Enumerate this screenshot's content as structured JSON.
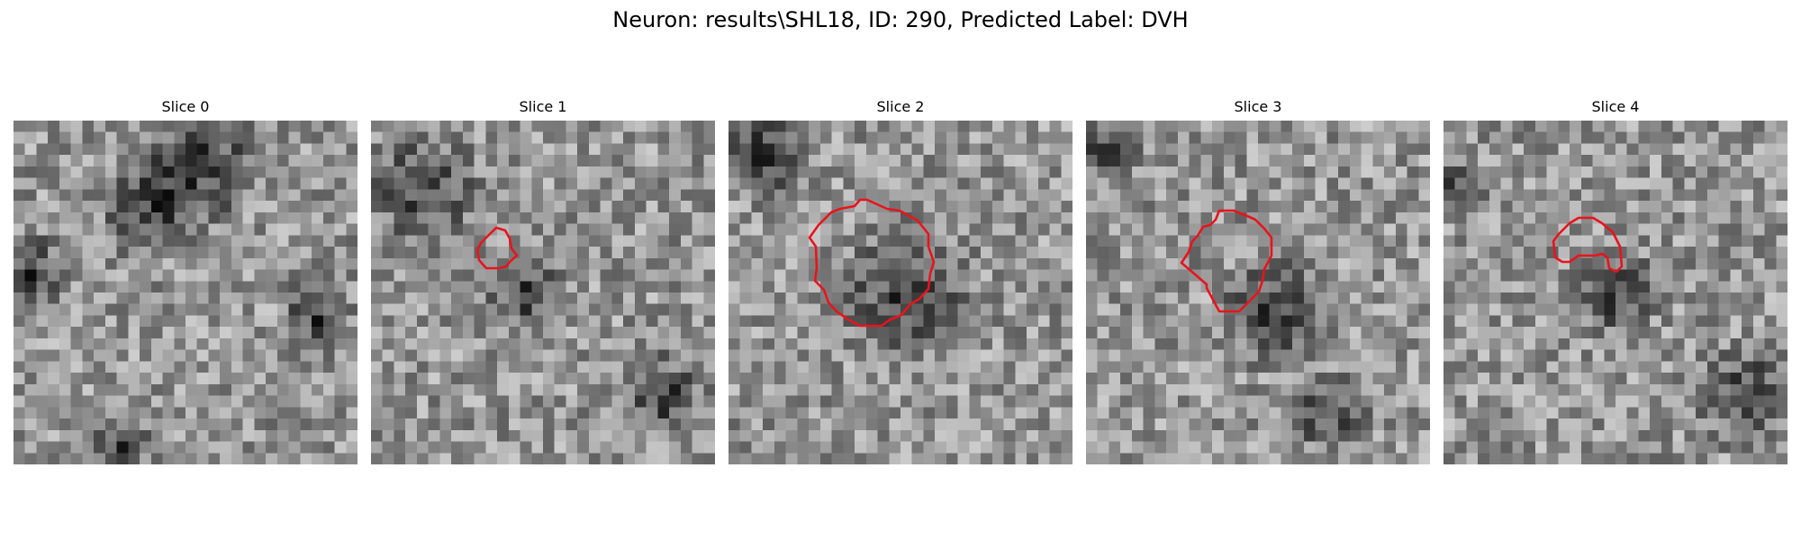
{
  "figure": {
    "title": "Neuron: results\\SHL18, ID: 290, Predicted Label: DVH",
    "colors": {
      "contour": "#e8141c",
      "background": "#ffffff",
      "colormap": "gray"
    }
  },
  "panels": [
    {
      "title": "Slice 0",
      "has_contour": false,
      "seed": 11,
      "dark_regions": [
        [
          0.55,
          0.12,
          0.22
        ],
        [
          0.4,
          0.25,
          0.18
        ],
        [
          0.88,
          0.57,
          0.13
        ],
        [
          0.05,
          0.45,
          0.15
        ],
        [
          0.3,
          0.95,
          0.12
        ]
      ]
    },
    {
      "title": "Slice 1",
      "has_contour": true,
      "seed": 23,
      "dark_regions": [
        [
          0.15,
          0.2,
          0.2
        ],
        [
          0.45,
          0.5,
          0.14
        ],
        [
          0.85,
          0.8,
          0.15
        ]
      ]
    },
    {
      "title": "Slice 2",
      "has_contour": true,
      "seed": 37,
      "dark_regions": [
        [
          0.1,
          0.1,
          0.16
        ],
        [
          0.52,
          0.5,
          0.24
        ]
      ]
    },
    {
      "title": "Slice 3",
      "has_contour": true,
      "seed": 51,
      "dark_regions": [
        [
          0.05,
          0.08,
          0.12
        ],
        [
          0.55,
          0.55,
          0.2
        ],
        [
          0.7,
          0.85,
          0.14
        ]
      ]
    },
    {
      "title": "Slice 4",
      "has_contour": true,
      "seed": 67,
      "dark_regions": [
        [
          0.5,
          0.5,
          0.15
        ],
        [
          0.88,
          0.8,
          0.18
        ],
        [
          0.05,
          0.2,
          0.1
        ]
      ]
    }
  ]
}
